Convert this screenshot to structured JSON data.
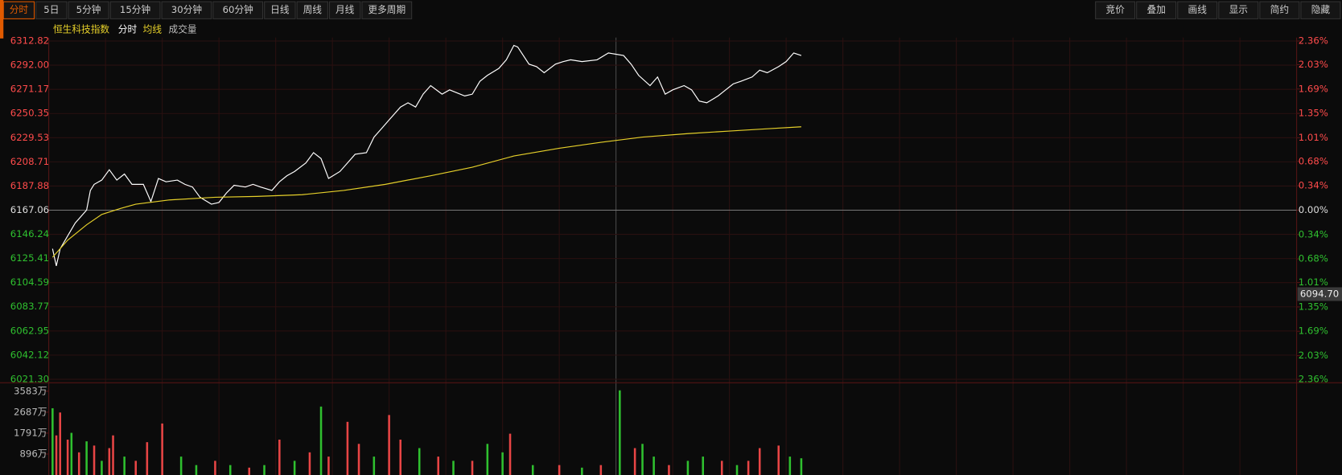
{
  "toolbar": {
    "left": [
      "分时",
      "5日",
      "5分钟",
      "15分钟",
      "30分钟",
      "60分钟",
      "日线",
      "周线",
      "月线",
      "更多周期"
    ],
    "right": [
      "竞价",
      "叠加",
      "画线",
      "显示",
      "简约",
      "隐藏"
    ]
  },
  "chart_data": [
    {
      "type": "line",
      "title": "恒生科技指数",
      "grid": true,
      "xlim": [
        0,
        330
      ],
      "ylim": [
        6021.3,
        6312.82
      ],
      "yticks": [
        {
          "value": 6312.82,
          "label": "6312.82"
        },
        {
          "value": 6292,
          "label": "6292.00"
        },
        {
          "value": 6271.17,
          "label": "6271.17"
        },
        {
          "value": 6250.35,
          "label": "6250.35"
        },
        {
          "value": 6229.53,
          "label": "6229.53"
        },
        {
          "value": 6208.71,
          "label": "6208.71"
        },
        {
          "value": 6187.88,
          "label": "6187.88"
        },
        {
          "value": 6167.06,
          "label": "6167.06"
        },
        {
          "value": 6146.24,
          "label": "6146.24"
        },
        {
          "value": 6125.41,
          "label": "6125.41"
        },
        {
          "value": 6104.59,
          "label": "6104.59"
        },
        {
          "value": 6083.77,
          "label": "6083.77"
        },
        {
          "value": 6062.95,
          "label": "6062.95"
        },
        {
          "value": 6042.12,
          "label": "6042.12"
        },
        {
          "value": 6021.3,
          "label": "6021.30"
        }
      ],
      "y2lim": [
        -2.36,
        2.36
      ],
      "y2ticks": [
        {
          "value": 2.36,
          "label": "2.36%"
        },
        {
          "value": 2.03,
          "label": "2.03%"
        },
        {
          "value": 1.69,
          "label": "1.69%"
        },
        {
          "value": 1.35,
          "label": "1.35%"
        },
        {
          "value": 1.01,
          "label": "1.01%"
        },
        {
          "value": 0.68,
          "label": "0.68%"
        },
        {
          "value": 0.34,
          "label": "0.34%"
        },
        {
          "value": 0,
          "label": "0.00%"
        },
        {
          "value": -0.34,
          "label": "0.34%"
        },
        {
          "value": -0.68,
          "label": "0.68%"
        },
        {
          "value": -1.01,
          "label": "1.01%"
        },
        {
          "value": -1.35,
          "label": "1.35%"
        },
        {
          "value": -1.69,
          "label": "1.69%"
        },
        {
          "value": -2.03,
          "label": "2.03%"
        },
        {
          "value": -2.36,
          "label": "2.36%"
        }
      ],
      "annotation": {
        "value": 6094.7,
        "label": "6094.70"
      },
      "series": [
        {
          "name": "分时",
          "color": "#ffffff",
          "x": [
            1,
            2,
            3,
            5,
            7,
            10,
            11,
            12,
            14,
            16,
            18,
            20,
            22,
            25,
            27,
            29,
            31,
            34,
            36,
            38,
            40,
            43,
            45,
            47,
            49,
            52,
            54,
            56,
            59,
            61,
            63,
            65,
            68,
            70,
            72,
            74,
            77,
            79,
            81,
            84,
            86,
            88,
            90,
            93,
            95,
            97,
            99,
            101,
            104,
            106,
            110,
            112,
            114,
            116,
            119,
            121,
            123,
            124,
            127,
            129,
            131,
            134,
            136,
            138,
            141,
            145,
            148,
            152,
            154,
            156,
            159,
            161,
            163,
            165,
            168,
            170,
            172,
            174,
            177,
            179,
            181,
            183,
            186,
            188,
            190,
            193,
            195,
            197,
            199
          ],
          "values": [
            6133.8,
            6119.0,
            6133.8,
            6144.9,
            6156.0,
            6167.1,
            6184.1,
            6189.3,
            6193.0,
            6201.9,
            6193.0,
            6198.2,
            6189.3,
            6189.3,
            6174.5,
            6194.4,
            6191.5,
            6193.0,
            6189.3,
            6187.0,
            6178.2,
            6172.2,
            6173.7,
            6181.9,
            6188.5,
            6187.0,
            6189.3,
            6187.0,
            6184.1,
            6191.5,
            6196.7,
            6200.4,
            6207.8,
            6216.6,
            6211.5,
            6194.4,
            6200.4,
            6207.8,
            6215.2,
            6216.6,
            6230.0,
            6237.4,
            6244.8,
            6255.9,
            6259.6,
            6255.9,
            6267.0,
            6274.4,
            6267.0,
            6270.7,
            6265.5,
            6267.0,
            6278.1,
            6283.2,
            6289.2,
            6296.6,
            6309.1,
            6307.7,
            6292.9,
            6290.7,
            6285.5,
            6292.9,
            6295.1,
            6296.6,
            6295.1,
            6296.6,
            6302.5,
            6300.3,
            6292.9,
            6283.2,
            6274.4,
            6281.8,
            6267.0,
            6270.7,
            6274.4,
            6270.7,
            6261.1,
            6259.6,
            6265.5,
            6270.7,
            6275.9,
            6278.1,
            6281.8,
            6287.7,
            6285.5,
            6290.7,
            6295.1,
            6302.5,
            6300.3
          ]
        },
        {
          "name": "均线",
          "color": "#e6d02a",
          "x": [
            1,
            5,
            10,
            14,
            19,
            23,
            32,
            44,
            55,
            67,
            78,
            89,
            101,
            112,
            123,
            135,
            146,
            157,
            169,
            180,
            191,
            199
          ],
          "values": [
            6126.4,
            6141.2,
            6154.5,
            6163.4,
            6168.5,
            6172.2,
            6175.9,
            6178.2,
            6178.9,
            6180.4,
            6184.1,
            6189.3,
            6196.7,
            6204.1,
            6213.7,
            6220.4,
            6225.5,
            6230.0,
            6233.0,
            6235.2,
            6237.4,
            6238.9
          ]
        }
      ]
    },
    {
      "type": "bar",
      "xlim": [
        0,
        330
      ],
      "ylim": [
        0,
        3800
      ],
      "yticks": [
        {
          "value": 896,
          "label": "896万"
        },
        {
          "value": 1791,
          "label": "1791万"
        },
        {
          "value": 2687,
          "label": "2687万"
        },
        {
          "value": 3583,
          "label": "3583万"
        }
      ],
      "series": [
        {
          "name": "成交量",
          "x": [
            1,
            2,
            3,
            5,
            6,
            8,
            10,
            12,
            14,
            16,
            17,
            20,
            23,
            26,
            30,
            35,
            39,
            44,
            48,
            53,
            57,
            61,
            65,
            69,
            72,
            74,
            79,
            82,
            86,
            90,
            93,
            98,
            103,
            107,
            112,
            116,
            120,
            122,
            128,
            135,
            141,
            146,
            151,
            155,
            157,
            160,
            164,
            169,
            173,
            178,
            182,
            185,
            188,
            193,
            196,
            199
          ],
          "values": [
            2855,
            1694,
            2673,
            1513,
            1803,
            969,
            1440,
            1259,
            606,
            1150,
            1694,
            787,
            606,
            1404,
            2202,
            787,
            424,
            606,
            424,
            315,
            424,
            1513,
            606,
            969,
            2927,
            787,
            2274,
            1331,
            787,
            2565,
            1513,
            1150,
            787,
            606,
            606,
            1331,
            969,
            1767,
            424,
            424,
            315,
            424,
            3620,
            1150,
            1331,
            787,
            424,
            606,
            787,
            606,
            424,
            606,
            1150,
            1259,
            787,
            715
          ],
          "colors": [
            "#2fc02f",
            "#e84545",
            "#e84545",
            "#e84545",
            "#2fc02f",
            "#e84545",
            "#2fc02f",
            "#e84545",
            "#2fc02f",
            "#e84545",
            "#e84545",
            "#2fc02f",
            "#e84545",
            "#e84545",
            "#e84545",
            "#2fc02f",
            "#2fc02f",
            "#e84545",
            "#2fc02f",
            "#e84545",
            "#2fc02f",
            "#e84545",
            "#2fc02f",
            "#e84545",
            "#2fc02f",
            "#e84545",
            "#e84545",
            "#e84545",
            "#2fc02f",
            "#e84545",
            "#e84545",
            "#2fc02f",
            "#e84545",
            "#2fc02f",
            "#e84545",
            "#2fc02f",
            "#2fc02f",
            "#e84545",
            "#2fc02f",
            "#e84545",
            "#2fc02f",
            "#e84545",
            "#2fc02f",
            "#e84545",
            "#2fc02f",
            "#2fc02f",
            "#e84545",
            "#2fc02f",
            "#2fc02f",
            "#e84545",
            "#2fc02f",
            "#e84545",
            "#e84545",
            "#e84545",
            "#2fc02f",
            "#2fc02f"
          ]
        }
      ]
    }
  ]
}
